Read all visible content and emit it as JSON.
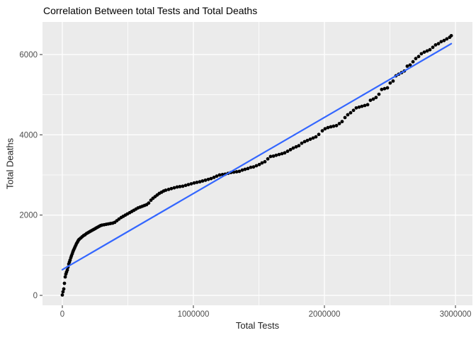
{
  "chart_data": {
    "type": "scatter",
    "title": "Correlation Between total Tests and Total Deaths",
    "xlabel": "Total Tests",
    "ylabel": "Total Deaths",
    "legend": "none",
    "grid": true,
    "panel_theme": "ggplot2-grey",
    "xlim": [
      -150000,
      3130000
    ],
    "ylim": [
      -280,
      6810
    ],
    "x_ticks": [
      0,
      1000000,
      2000000,
      3000000
    ],
    "x_tick_labels": [
      "0",
      "1000000",
      "2000000",
      "3000000"
    ],
    "x_minor_gridlines": [
      500000,
      1500000,
      2500000
    ],
    "y_ticks": [
      0,
      2000,
      4000,
      6000
    ],
    "y_tick_labels": [
      "0",
      "2000",
      "4000",
      "6000"
    ],
    "y_minor_gridlines": [
      1000,
      3000,
      5000
    ],
    "colors": {
      "point": "#000000",
      "regression_line": "#3366FF",
      "panel_background": "#EBEBEB",
      "gridline": "#FFFFFF",
      "tick_mark": "#333333",
      "tick_label": "#4D4D4D",
      "title": "#000000"
    },
    "regression_line": {
      "x1": 0,
      "y1": 640,
      "x2": 2968000,
      "y2": 6270
    },
    "points": [
      [
        0,
        10
      ],
      [
        5000,
        90
      ],
      [
        11000,
        160
      ],
      [
        16000,
        300
      ],
      [
        22000,
        460
      ],
      [
        27000,
        530
      ],
      [
        32000,
        580
      ],
      [
        38000,
        630
      ],
      [
        43000,
        700
      ],
      [
        49000,
        780
      ],
      [
        54000,
        830
      ],
      [
        59000,
        880
      ],
      [
        65000,
        940
      ],
      [
        70000,
        990
      ],
      [
        76000,
        1040
      ],
      [
        81000,
        1090
      ],
      [
        86000,
        1130
      ],
      [
        92000,
        1170
      ],
      [
        97000,
        1210
      ],
      [
        103000,
        1250
      ],
      [
        108000,
        1290
      ],
      [
        114000,
        1320
      ],
      [
        119000,
        1350
      ],
      [
        124000,
        1380
      ],
      [
        130000,
        1400
      ],
      [
        141000,
        1430
      ],
      [
        151000,
        1460
      ],
      [
        162000,
        1490
      ],
      [
        173000,
        1510
      ],
      [
        184000,
        1540
      ],
      [
        195000,
        1560
      ],
      [
        205000,
        1580
      ],
      [
        216000,
        1600
      ],
      [
        227000,
        1620
      ],
      [
        238000,
        1640
      ],
      [
        249000,
        1660
      ],
      [
        259000,
        1680
      ],
      [
        270000,
        1700
      ],
      [
        281000,
        1720
      ],
      [
        292000,
        1740
      ],
      [
        303000,
        1750
      ],
      [
        319000,
        1760
      ],
      [
        335000,
        1770
      ],
      [
        351000,
        1780
      ],
      [
        367000,
        1790
      ],
      [
        384000,
        1800
      ],
      [
        400000,
        1820
      ],
      [
        416000,
        1860
      ],
      [
        432000,
        1900
      ],
      [
        449000,
        1940
      ],
      [
        465000,
        1970
      ],
      [
        481000,
        2000
      ],
      [
        497000,
        2030
      ],
      [
        514000,
        2060
      ],
      [
        530000,
        2090
      ],
      [
        546000,
        2120
      ],
      [
        562000,
        2150
      ],
      [
        578000,
        2180
      ],
      [
        595000,
        2200
      ],
      [
        611000,
        2220
      ],
      [
        627000,
        2240
      ],
      [
        643000,
        2260
      ],
      [
        659000,
        2300
      ],
      [
        676000,
        2370
      ],
      [
        692000,
        2420
      ],
      [
        708000,
        2460
      ],
      [
        724000,
        2500
      ],
      [
        740000,
        2540
      ],
      [
        757000,
        2570
      ],
      [
        773000,
        2600
      ],
      [
        789000,
        2620
      ],
      [
        811000,
        2640
      ],
      [
        832000,
        2660
      ],
      [
        854000,
        2680
      ],
      [
        876000,
        2700
      ],
      [
        897000,
        2710
      ],
      [
        919000,
        2720
      ],
      [
        941000,
        2740
      ],
      [
        962000,
        2760
      ],
      [
        984000,
        2780
      ],
      [
        1006000,
        2800
      ],
      [
        1027000,
        2815
      ],
      [
        1049000,
        2830
      ],
      [
        1070000,
        2850
      ],
      [
        1092000,
        2870
      ],
      [
        1114000,
        2890
      ],
      [
        1135000,
        2910
      ],
      [
        1157000,
        2940
      ],
      [
        1178000,
        2970
      ],
      [
        1200000,
        3000
      ],
      [
        1222000,
        3010
      ],
      [
        1243000,
        3020
      ],
      [
        1265000,
        3040
      ],
      [
        1286000,
        3060
      ],
      [
        1308000,
        3070
      ],
      [
        1330000,
        3080
      ],
      [
        1351000,
        3090
      ],
      [
        1373000,
        3120
      ],
      [
        1394000,
        3140
      ],
      [
        1416000,
        3160
      ],
      [
        1438000,
        3190
      ],
      [
        1459000,
        3200
      ],
      [
        1481000,
        3230
      ],
      [
        1503000,
        3260
      ],
      [
        1524000,
        3300
      ],
      [
        1546000,
        3330
      ],
      [
        1568000,
        3400
      ],
      [
        1589000,
        3460
      ],
      [
        1611000,
        3470
      ],
      [
        1632000,
        3490
      ],
      [
        1654000,
        3510
      ],
      [
        1676000,
        3530
      ],
      [
        1697000,
        3550
      ],
      [
        1719000,
        3590
      ],
      [
        1741000,
        3630
      ],
      [
        1762000,
        3670
      ],
      [
        1784000,
        3700
      ],
      [
        1805000,
        3730
      ],
      [
        1827000,
        3790
      ],
      [
        1849000,
        3830
      ],
      [
        1870000,
        3860
      ],
      [
        1892000,
        3890
      ],
      [
        1914000,
        3920
      ],
      [
        1935000,
        3950
      ],
      [
        1957000,
        4010
      ],
      [
        1984000,
        4100
      ],
      [
        2005000,
        4150
      ],
      [
        2027000,
        4180
      ],
      [
        2049000,
        4200
      ],
      [
        2070000,
        4215
      ],
      [
        2092000,
        4230
      ],
      [
        2114000,
        4280
      ],
      [
        2135000,
        4330
      ],
      [
        2157000,
        4430
      ],
      [
        2178000,
        4500
      ],
      [
        2200000,
        4550
      ],
      [
        2222000,
        4610
      ],
      [
        2243000,
        4670
      ],
      [
        2265000,
        4690
      ],
      [
        2286000,
        4710
      ],
      [
        2308000,
        4730
      ],
      [
        2330000,
        4750
      ],
      [
        2351000,
        4860
      ],
      [
        2373000,
        4890
      ],
      [
        2394000,
        4930
      ],
      [
        2416000,
        5010
      ],
      [
        2437000,
        5130
      ],
      [
        2459000,
        5150
      ],
      [
        2481000,
        5170
      ],
      [
        2502000,
        5290
      ],
      [
        2524000,
        5340
      ],
      [
        2546000,
        5470
      ],
      [
        2567000,
        5510
      ],
      [
        2589000,
        5550
      ],
      [
        2610000,
        5590
      ],
      [
        2632000,
        5710
      ],
      [
        2654000,
        5740
      ],
      [
        2676000,
        5820
      ],
      [
        2697000,
        5900
      ],
      [
        2719000,
        5950
      ],
      [
        2740000,
        6020
      ],
      [
        2762000,
        6060
      ],
      [
        2784000,
        6090
      ],
      [
        2805000,
        6120
      ],
      [
        2827000,
        6180
      ],
      [
        2848000,
        6240
      ],
      [
        2870000,
        6270
      ],
      [
        2891000,
        6320
      ],
      [
        2913000,
        6350
      ],
      [
        2934000,
        6390
      ],
      [
        2956000,
        6430
      ],
      [
        2968000,
        6470
      ]
    ]
  }
}
